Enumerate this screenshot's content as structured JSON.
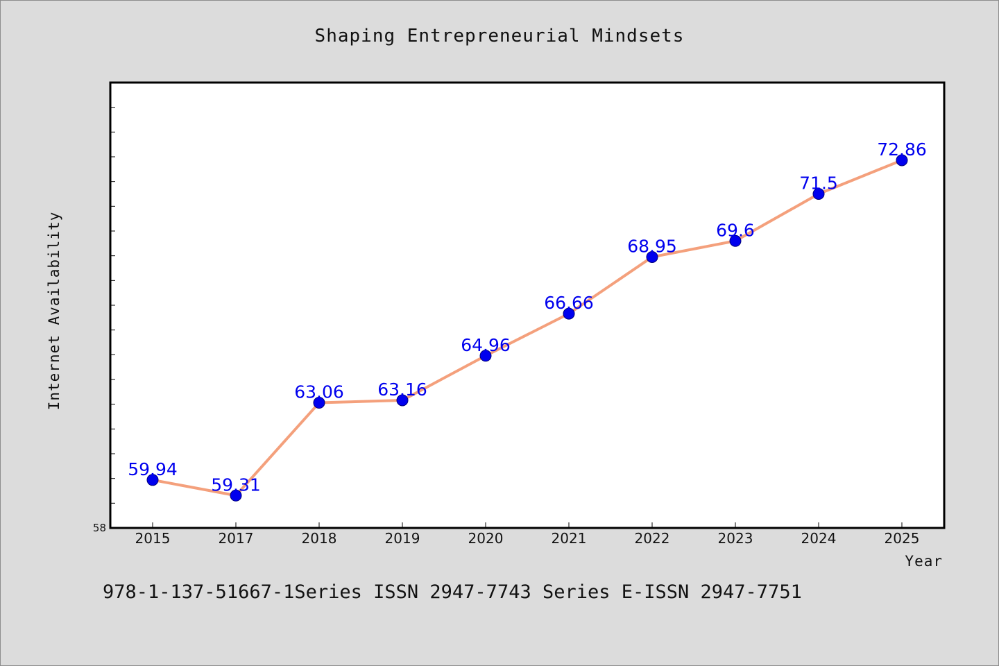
{
  "chart_data": {
    "type": "line",
    "title": "Shaping Entrepreneurial Mindsets",
    "xlabel": "Year",
    "ylabel": "Internet Availability",
    "categories": [
      "2015",
      "2017",
      "2018",
      "2019",
      "2020",
      "2021",
      "2022",
      "2023",
      "2024",
      "2025"
    ],
    "series": [
      {
        "values": [
          59.94,
          59.31,
          63.06,
          63.16,
          64.96,
          66.66,
          68.95,
          69.6,
          71.5,
          72.86
        ]
      }
    ],
    "data_labels": [
      "59.94",
      "59.31",
      "63.06",
      "63.16",
      "64.96",
      "66.66",
      "68.95",
      "69.6",
      "71.5",
      "72.86"
    ],
    "ylim": [
      58,
      76
    ],
    "y_min_label": "58",
    "grid": false,
    "legend": "none",
    "colors": {
      "line": "#f4a07c",
      "marker": "#0000ee",
      "data_label": "#0000ee"
    }
  },
  "footer": {
    "text": "978-1-137-51667-1Series ISSN 2947-7743 Series E-ISSN 2947-7751"
  }
}
